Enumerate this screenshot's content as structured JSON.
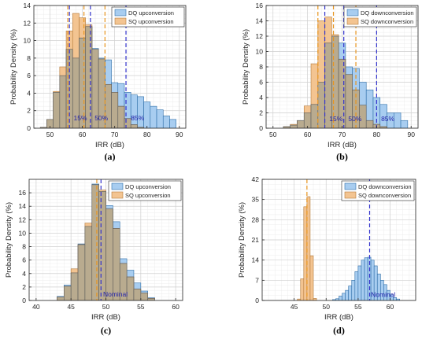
{
  "colors": {
    "dq_fill": "#a8cdf0",
    "dq_edge": "#2e6ea8",
    "sq_fill": "#f3c491",
    "sq_edge": "#b47a3a",
    "overlap_fill": "#b9ab8f",
    "overlap_edge": "#5a5a5a",
    "dq_line": "#3333cc",
    "sq_line": "#e8951f",
    "annotation": "#2222aa",
    "grid_major": "#d0d0d0",
    "grid_minor": "#ececec"
  },
  "chart_data": [
    {
      "type": "bar",
      "panel": "(a)",
      "xlabel": "IRR (dB)",
      "ylabel": "Probability Density (%)",
      "xlim": [
        45,
        92
      ],
      "ylim": [
        0,
        14
      ],
      "xticks": [
        50,
        60,
        70,
        80,
        90
      ],
      "yticks": [
        0,
        2,
        4,
        6,
        8,
        10,
        12,
        14
      ],
      "grid": true,
      "legend_position": "top-right",
      "bin_edges": [
        47,
        49,
        51,
        53,
        55,
        57,
        59,
        61,
        63,
        65,
        67,
        69,
        71,
        73,
        75,
        77,
        79,
        81,
        83,
        85,
        87,
        89
      ],
      "series": [
        {
          "name": "DQ upconversion",
          "values": [
            0.1,
            1.0,
            4.1,
            6.0,
            9.0,
            8.0,
            10.3,
            11.6,
            9.1,
            8.0,
            7.8,
            5.2,
            5.1,
            4.1,
            3.8,
            3.6,
            3.0,
            2.5,
            2.1,
            1.4,
            1.0
          ]
        },
        {
          "name": "SQ upconversion",
          "values": [
            0.1,
            1.0,
            4.2,
            7.0,
            11.1,
            13.1,
            12.6,
            11.8,
            9.0,
            7.9,
            5.0,
            4.1,
            2.5,
            1.1,
            0.4,
            0.1,
            0.0,
            0.0,
            0.0,
            0.0,
            0.0
          ]
        }
      ],
      "vlines": [
        {
          "x": 56,
          "series": "DQ"
        },
        {
          "x": 62.5,
          "series": "DQ"
        },
        {
          "x": 73.5,
          "series": "DQ"
        },
        {
          "x": 55.5,
          "series": "SQ"
        },
        {
          "x": 60.5,
          "series": "SQ"
        },
        {
          "x": 67,
          "series": "SQ"
        }
      ],
      "annotations": [
        {
          "text": "15%",
          "x": 57.3,
          "y": 0.9
        },
        {
          "text": "50%",
          "x": 63.8,
          "y": 0.9
        },
        {
          "text": "85%",
          "x": 75.0,
          "y": 0.9
        }
      ]
    },
    {
      "type": "bar",
      "panel": "(b)",
      "xlabel": "IRR (dB)",
      "ylabel": "Probability Density (%)",
      "xlim": [
        48,
        92
      ],
      "ylim": [
        0,
        16
      ],
      "xticks": [
        50,
        60,
        70,
        80,
        90
      ],
      "yticks": [
        0,
        2,
        4,
        6,
        8,
        10,
        12,
        14,
        16
      ],
      "grid": true,
      "legend_position": "top-right",
      "bin_edges": [
        53,
        55,
        57,
        59,
        61,
        63,
        65,
        67,
        69,
        71,
        73,
        75,
        77,
        79,
        81,
        83,
        85,
        87,
        89
      ],
      "series": [
        {
          "name": "DQ downconversion",
          "values": [
            0.2,
            0.4,
            1.0,
            2.0,
            3.1,
            6.0,
            11.1,
            12.0,
            11.1,
            8.0,
            7.8,
            6.0,
            5.0,
            4.0,
            3.1,
            2.0,
            2.0,
            1.0
          ]
        },
        {
          "name": "SQ downconversion",
          "values": [
            0.2,
            0.5,
            1.0,
            2.9,
            8.4,
            14.0,
            14.5,
            12.2,
            9.0,
            7.0,
            5.0,
            3.0,
            1.0,
            0.5,
            0.2,
            0.0,
            0.0,
            0.0
          ]
        }
      ],
      "vlines": [
        {
          "x": 65,
          "series": "DQ"
        },
        {
          "x": 70.5,
          "series": "DQ"
        },
        {
          "x": 80,
          "series": "DQ"
        },
        {
          "x": 63,
          "series": "SQ"
        },
        {
          "x": 67.5,
          "series": "SQ"
        },
        {
          "x": 74,
          "series": "SQ"
        }
      ],
      "annotations": [
        {
          "text": "15%",
          "x": 66.3,
          "y": 0.9
        },
        {
          "text": "50%",
          "x": 71.8,
          "y": 0.9
        },
        {
          "text": "85%",
          "x": 81.3,
          "y": 0.9
        }
      ]
    },
    {
      "type": "bar",
      "panel": "(c)",
      "xlabel": "IRR (dB)",
      "ylabel": "Probability Density (%)",
      "xlim": [
        39,
        61
      ],
      "ylim": [
        0,
        18
      ],
      "xticks": [
        40,
        45,
        50,
        55,
        60
      ],
      "yticks": [
        0,
        2,
        4,
        6,
        8,
        10,
        12,
        14,
        16
      ],
      "grid": true,
      "legend_position": "top-right",
      "bin_edges": [
        43,
        44,
        45,
        46,
        47,
        48,
        49,
        50,
        51,
        52,
        53,
        54,
        55,
        56,
        57
      ],
      "series": [
        {
          "name": "DQ upconversion",
          "values": [
            0.6,
            2.3,
            4.1,
            8.4,
            11.0,
            17.3,
            16.2,
            14.1,
            11.7,
            6.2,
            4.5,
            2.6,
            1.4,
            0.4
          ]
        },
        {
          "name": "SQ upconversion",
          "values": [
            0.5,
            2.1,
            4.7,
            8.3,
            11.5,
            17.2,
            16.4,
            13.6,
            10.7,
            5.5,
            3.5,
            1.7,
            1.1,
            0.3
          ]
        }
      ],
      "vlines": [
        {
          "x": 49.3,
          "series": "DQ"
        },
        {
          "x": 48.7,
          "series": "SQ"
        }
      ],
      "annotations": [
        {
          "text": "Nominal",
          "x": 49.6,
          "y": 0.6
        }
      ]
    },
    {
      "type": "bar",
      "panel": "(d)",
      "xlabel": "IRR (dB)",
      "ylabel": "Probability Density (%)",
      "xlim": [
        40,
        64
      ],
      "ylim": [
        0,
        42
      ],
      "xticks": [
        45,
        50,
        55,
        60
      ],
      "yticks": [
        0,
        7,
        14,
        21,
        28,
        35,
        42
      ],
      "grid": true,
      "legend_position": "top-right",
      "series": [
        {
          "name": "DQ downconversion",
          "bin_edges": [
            51,
            51.5,
            52,
            52.5,
            53,
            53.5,
            54,
            54.5,
            55,
            55.5,
            56,
            56.5,
            57,
            57.5,
            58,
            58.5,
            59,
            59.5,
            60,
            60.5,
            61,
            61.5
          ],
          "values": [
            0.3,
            0.6,
            1.5,
            2.5,
            3.5,
            5.0,
            7.0,
            10.0,
            12.0,
            14.0,
            14.8,
            15.0,
            14.0,
            12.0,
            9.2,
            7.0,
            5.5,
            3.5,
            2.0,
            1.0,
            0.5
          ]
        },
        {
          "name": "SQ downconversion",
          "bin_edges": [
            45.5,
            46,
            46.5,
            47,
            47.5,
            48,
            48.5
          ],
          "values": [
            0.5,
            7.5,
            32.5,
            36.0,
            15.5,
            0.7
          ]
        }
      ],
      "vlines": [
        {
          "x": 56.8,
          "series": "DQ"
        },
        {
          "x": 47.0,
          "series": "SQ"
        }
      ],
      "annotations": [
        {
          "text": "Nominal",
          "x": 57.0,
          "y": 1.2
        }
      ]
    }
  ]
}
